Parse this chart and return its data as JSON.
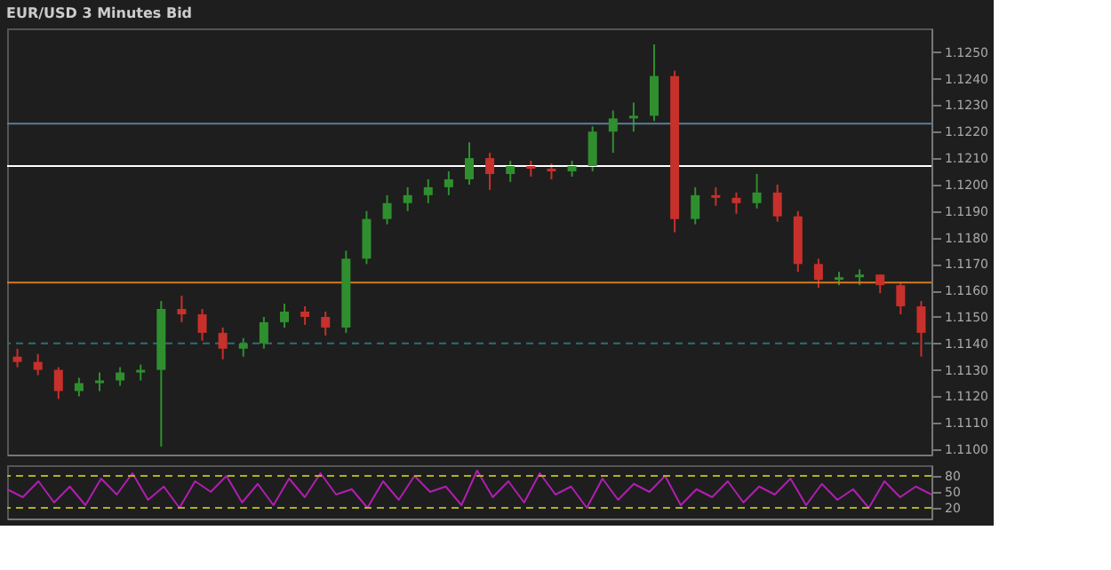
{
  "chart_data": [
    {
      "type": "candlestick",
      "title": "EUR/USD 3 Minutes Bid",
      "categories": [
        null,
        null,
        null,
        null,
        null,
        null,
        null,
        null,
        null,
        null,
        null,
        null,
        null,
        null,
        null,
        null,
        null,
        null,
        null,
        null,
        null,
        null,
        null,
        null,
        null,
        null,
        null,
        null,
        null,
        null,
        null,
        null,
        null,
        null,
        null,
        null,
        null,
        null,
        null,
        null,
        null,
        null,
        null,
        null,
        null
      ],
      "ohlc": [
        [
          1.1135,
          1.1138,
          1.1131,
          1.1133
        ],
        [
          1.1133,
          1.1136,
          1.1128,
          1.113
        ],
        [
          1.113,
          1.1131,
          1.1119,
          1.1122
        ],
        [
          1.1122,
          1.1127,
          1.112,
          1.1125
        ],
        [
          1.1125,
          1.1129,
          1.1122,
          1.1126
        ],
        [
          1.1126,
          1.1131,
          1.1124,
          1.1129
        ],
        [
          1.1129,
          1.1132,
          1.1126,
          1.113
        ],
        [
          1.113,
          1.1156,
          1.1101,
          1.1153
        ],
        [
          1.1153,
          1.1158,
          1.1148,
          1.1151
        ],
        [
          1.1151,
          1.1153,
          1.1141,
          1.1144
        ],
        [
          1.1144,
          1.1146,
          1.1134,
          1.1138
        ],
        [
          1.1138,
          1.1142,
          1.1135,
          1.114
        ],
        [
          1.114,
          1.115,
          1.1138,
          1.1148
        ],
        [
          1.1148,
          1.1155,
          1.1146,
          1.1152
        ],
        [
          1.1152,
          1.1154,
          1.1147,
          1.115
        ],
        [
          1.115,
          1.1152,
          1.1143,
          1.1146
        ],
        [
          1.1146,
          1.1175,
          1.1144,
          1.1172
        ],
        [
          1.1172,
          1.119,
          1.117,
          1.1187
        ],
        [
          1.1187,
          1.1196,
          1.1185,
          1.1193
        ],
        [
          1.1193,
          1.1199,
          1.119,
          1.1196
        ],
        [
          1.1196,
          1.1202,
          1.1193,
          1.1199
        ],
        [
          1.1199,
          1.1205,
          1.1196,
          1.1202
        ],
        [
          1.1202,
          1.1216,
          1.12,
          1.121
        ],
        [
          1.121,
          1.1212,
          1.1198,
          1.1204
        ],
        [
          1.1204,
          1.1209,
          1.1201,
          1.1207
        ],
        [
          1.1207,
          1.1209,
          1.1203,
          1.1206
        ],
        [
          1.1206,
          1.1208,
          1.1202,
          1.1205
        ],
        [
          1.1205,
          1.1209,
          1.1203,
          1.1207
        ],
        [
          1.1207,
          1.1222,
          1.1205,
          1.122
        ],
        [
          1.122,
          1.1228,
          1.1212,
          1.1225
        ],
        [
          1.1225,
          1.1231,
          1.122,
          1.1226
        ],
        [
          1.1226,
          1.1253,
          1.1224,
          1.1241
        ],
        [
          1.1241,
          1.1243,
          1.1182,
          1.1187
        ],
        [
          1.1187,
          1.1199,
          1.1185,
          1.1196
        ],
        [
          1.1196,
          1.1199,
          1.1192,
          1.1195
        ],
        [
          1.1195,
          1.1197,
          1.1189,
          1.1193
        ],
        [
          1.1193,
          1.1204,
          1.1191,
          1.1197
        ],
        [
          1.1197,
          1.12,
          1.1186,
          1.1188
        ],
        [
          1.1188,
          1.119,
          1.1167,
          1.117
        ],
        [
          1.117,
          1.1172,
          1.1161,
          1.1164
        ],
        [
          1.1164,
          1.1167,
          1.1162,
          1.1165
        ],
        [
          1.1165,
          1.1168,
          1.1162,
          1.1166
        ],
        [
          1.1166,
          1.1166,
          1.1159,
          1.1162
        ],
        [
          1.1162,
          1.1163,
          1.1151,
          1.1154
        ],
        [
          1.1154,
          1.1156,
          1.1135,
          1.1144
        ]
      ],
      "colors": [
        "#c8302b",
        "#c8302b",
        "#c8302b",
        "#2f8f2f",
        "#2f8f2f",
        "#2f8f2f",
        "#2f8f2f",
        "#2f8f2f",
        "#c8302b",
        "#c8302b",
        "#c8302b",
        "#2f8f2f",
        "#2f8f2f",
        "#2f8f2f",
        "#c8302b",
        "#c8302b",
        "#2f8f2f",
        "#2f8f2f",
        "#2f8f2f",
        "#2f8f2f",
        "#2f8f2f",
        "#2f8f2f",
        "#2f8f2f",
        "#c8302b",
        "#2f8f2f",
        "#c8302b",
        "#c8302b",
        "#2f8f2f",
        "#2f8f2f",
        "#2f8f2f",
        "#2f8f2f",
        "#2f8f2f",
        "#c8302b",
        "#2f8f2f",
        "#c8302b",
        "#c8302b",
        "#2f8f2f",
        "#c8302b",
        "#c8302b",
        "#c8302b",
        "#2f8f2f",
        "#2f8f2f",
        "#c8302b",
        "#c8302b",
        "#c8302b"
      ],
      "ylim": [
        1.1098,
        1.1259
      ],
      "yticks": [
        {
          "value": 1.125,
          "label": "1.1250"
        },
        {
          "value": 1.124,
          "label": "1.1240"
        },
        {
          "value": 1.123,
          "label": "1.1230"
        },
        {
          "value": 1.122,
          "label": "1.1220"
        },
        {
          "value": 1.121,
          "label": "1.1210"
        },
        {
          "value": 1.12,
          "label": "1.1200"
        },
        {
          "value": 1.119,
          "label": "1.1190"
        },
        {
          "value": 1.118,
          "label": "1.1180"
        },
        {
          "value": 1.117,
          "label": "1.1170"
        },
        {
          "value": 1.116,
          "label": "1.1160"
        },
        {
          "value": 1.115,
          "label": "1.1150"
        },
        {
          "value": 1.114,
          "label": "1.1140"
        },
        {
          "value": 1.113,
          "label": "1.1130"
        },
        {
          "value": 1.112,
          "label": "1.1120"
        },
        {
          "value": 1.111,
          "label": "1.1110"
        },
        {
          "value": 1.11,
          "label": "1.1100"
        }
      ],
      "ref_lines": [
        {
          "axis": "y",
          "value": 1.1207,
          "label": null,
          "color": "#ffffff"
        },
        {
          "axis": "y",
          "value": 1.1163,
          "label": null,
          "color": "#d77a1e"
        },
        {
          "axis": "y",
          "value": 1.1223,
          "label": null,
          "color": "#5a7f9a"
        },
        {
          "axis": "y",
          "value": 1.114,
          "label": null,
          "color": "#2f6f6f",
          "line_style": "dashed"
        }
      ],
      "tick_labels": "y",
      "grid": false
    },
    {
      "type": "line",
      "categories": [
        null,
        null,
        null,
        null,
        null,
        null,
        null,
        null,
        null,
        null,
        null,
        null,
        null,
        null,
        null,
        null,
        null,
        null,
        null,
        null,
        null,
        null,
        null,
        null,
        null,
        null,
        null,
        null,
        null,
        null,
        null,
        null,
        null,
        null,
        null,
        null,
        null,
        null,
        null,
        null,
        null,
        null,
        null,
        null,
        null,
        null,
        null,
        null,
        null,
        null,
        null,
        null,
        null,
        null,
        null,
        null,
        null,
        null,
        null,
        null
      ],
      "series": [
        {
          "color": "#b01eb0",
          "values": [
            55,
            40,
            70,
            30,
            60,
            25,
            75,
            45,
            85,
            35,
            60,
            20,
            70,
            50,
            80,
            30,
            65,
            25,
            75,
            40,
            85,
            45,
            55,
            20,
            70,
            35,
            80,
            50,
            60,
            25,
            90,
            40,
            70,
            30,
            85,
            45,
            60,
            20,
            75,
            35,
            65,
            50,
            80,
            25,
            55,
            40,
            70,
            30,
            60,
            45,
            75,
            25,
            65,
            35,
            55,
            20,
            70,
            40,
            60,
            45
          ]
        }
      ],
      "ylim": [
        0,
        100
      ],
      "yticks": [
        20,
        50,
        80
      ],
      "ref_lines": [
        {
          "axis": "y",
          "value": 80,
          "label": null,
          "color": "#b0b020",
          "line_style": "dashed"
        },
        {
          "axis": "y",
          "value": 20,
          "label": null,
          "color": "#b0b020",
          "line_style": "dashed"
        }
      ],
      "tick_labels": "y",
      "grid": false
    }
  ]
}
